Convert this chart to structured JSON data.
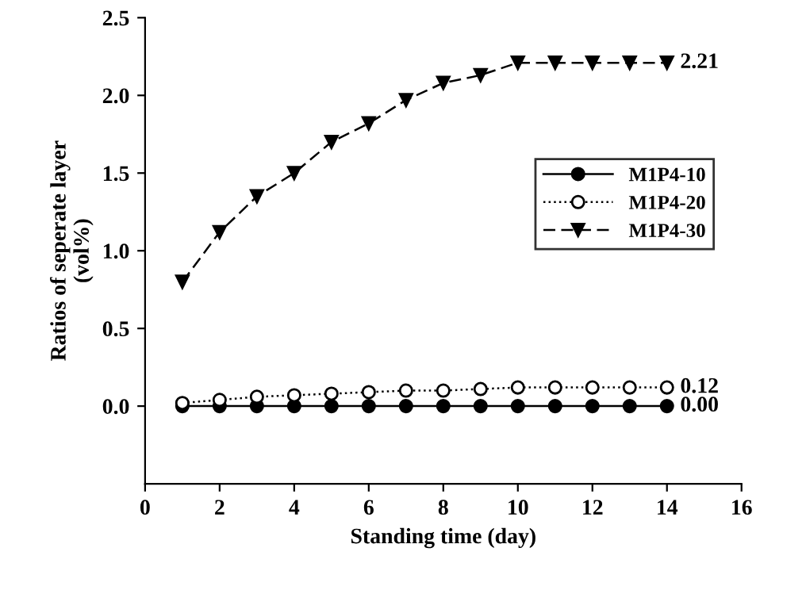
{
  "chart_data": {
    "type": "line",
    "xlabel": "Standing time (day)",
    "ylabel": "Ratios of seperate layer\n(vol%)",
    "x": [
      1,
      2,
      3,
      4,
      5,
      6,
      7,
      8,
      9,
      10,
      11,
      12,
      13,
      14
    ],
    "series": [
      {
        "name": "M1P4-10",
        "color": "#000000",
        "marker": "circle",
        "line_style": "solid",
        "values": [
          0.0,
          0.0,
          0.0,
          0.0,
          0.0,
          0.0,
          0.0,
          0.0,
          0.0,
          0.0,
          0.0,
          0.0,
          0.0,
          0.0
        ],
        "value_labels": [
          null,
          null,
          null,
          null,
          null,
          null,
          null,
          null,
          null,
          null,
          null,
          null,
          null,
          "0.00"
        ]
      },
      {
        "name": "M1P4-20",
        "color": "#000000",
        "marker": "circle",
        "line_style": "dotted",
        "values": [
          0.02,
          0.04,
          0.06,
          0.07,
          0.08,
          0.09,
          0.1,
          0.1,
          0.11,
          0.12,
          0.12,
          0.12,
          0.12,
          0.12
        ],
        "value_labels": [
          null,
          null,
          null,
          null,
          null,
          null,
          null,
          null,
          null,
          null,
          null,
          null,
          null,
          "0.12"
        ]
      },
      {
        "name": "M1P4-30",
        "color": "#000000",
        "marker": "triangle",
        "line_style": "dashed",
        "values": [
          0.8,
          1.12,
          1.35,
          1.5,
          1.7,
          1.82,
          1.97,
          2.08,
          2.13,
          2.21,
          2.21,
          2.21,
          2.21,
          2.21
        ],
        "value_labels": [
          null,
          null,
          null,
          null,
          null,
          null,
          null,
          null,
          null,
          null,
          null,
          null,
          null,
          "2.21"
        ]
      }
    ],
    "xlim": [
      0,
      16
    ],
    "xticks": [
      0,
      2,
      4,
      6,
      8,
      10,
      12,
      14,
      16
    ],
    "ylim": [
      -0.5,
      2.5
    ],
    "yticks": [
      {
        "value": 0,
        "label": "0.0"
      },
      {
        "value": 0.5,
        "label": "0.5"
      },
      {
        "value": 1,
        "label": "1.0"
      },
      {
        "value": 1.5,
        "label": "1.5"
      },
      {
        "value": 2,
        "label": "2.0"
      },
      {
        "value": 2.5,
        "label": "2.5"
      }
    ],
    "grid": false,
    "legend": "right"
  }
}
